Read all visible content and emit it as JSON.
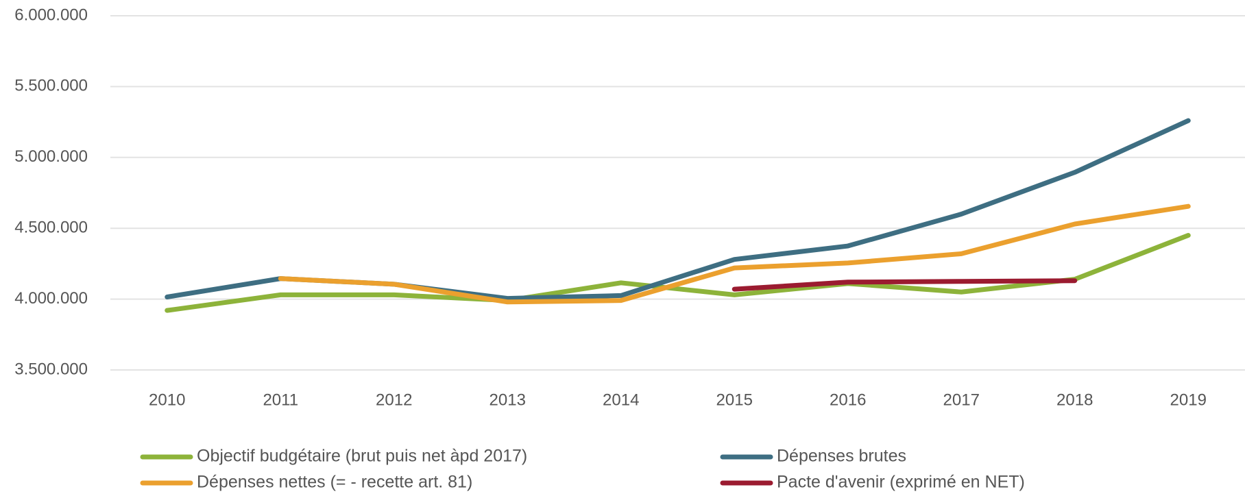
{
  "chart_data": {
    "type": "line",
    "categories": [
      "2010",
      "2011",
      "2012",
      "2013",
      "2014",
      "2015",
      "2016",
      "2017",
      "2018",
      "2019"
    ],
    "series": [
      {
        "name": "Objectif budgétaire (brut puis net àpd 2017)",
        "color": "#8db33a",
        "values": [
          3920000,
          4030000,
          4030000,
          3990000,
          4115000,
          4030000,
          4110000,
          4050000,
          4140000,
          4450000
        ]
      },
      {
        "name": "Dépenses brutes",
        "color": "#3e6e82",
        "values": [
          4015000,
          4145000,
          4105000,
          4005000,
          4025000,
          4280000,
          4375000,
          4600000,
          4895000,
          5260000
        ]
      },
      {
        "name": "Dépenses nettes (= - recette art. 81)",
        "color": "#eba02e",
        "values": [
          null,
          4145000,
          4105000,
          3980000,
          3990000,
          4220000,
          4255000,
          4320000,
          4530000,
          4655000
        ]
      },
      {
        "name": "Pacte d'avenir (exprimé en NET)",
        "color": "#9b1b30",
        "values": [
          null,
          null,
          null,
          null,
          null,
          4070000,
          4120000,
          4125000,
          4130000,
          null
        ]
      }
    ],
    "ylim": [
      3500000,
      6000000
    ],
    "yticks": [
      {
        "value": 3500000,
        "label": "3.500.000"
      },
      {
        "value": 4000000,
        "label": "4.000.000"
      },
      {
        "value": 4500000,
        "label": "4.500.000"
      },
      {
        "value": 5000000,
        "label": "5.000.000"
      },
      {
        "value": 5500000,
        "label": "5.500.000"
      },
      {
        "value": 6000000,
        "label": "6.000.000"
      }
    ],
    "grid": true,
    "legend": "bottom"
  }
}
